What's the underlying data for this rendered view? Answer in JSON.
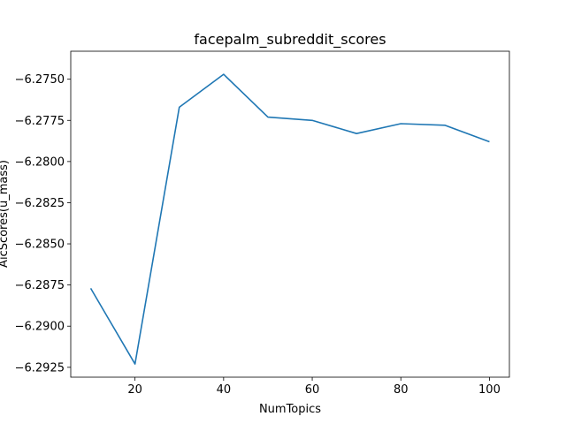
{
  "chart_data": {
    "type": "line",
    "title": "facepalm_subreddit_scores",
    "xlabel": "NumTopics",
    "ylabel": "AicScores(u_mass)",
    "x": [
      10,
      20,
      30,
      40,
      50,
      60,
      70,
      80,
      90,
      100
    ],
    "series": [
      {
        "values": [
          -6.2877,
          -6.2923,
          -6.2767,
          -6.2747,
          -6.2773,
          -6.2775,
          -6.2783,
          -6.2777,
          -6.2778,
          -6.2788
        ],
        "color": "#1f77b4"
      }
    ],
    "xlim": [
      5.5,
      104.5
    ],
    "ylim": [
      -6.2931,
      -6.2733
    ],
    "xticks": [
      20,
      40,
      60,
      80,
      100
    ],
    "xtick_labels": [
      "20",
      "40",
      "60",
      "80",
      "100"
    ],
    "yticks": [
      -6.2925,
      -6.29,
      -6.2875,
      -6.285,
      -6.2825,
      -6.28,
      -6.2775,
      -6.275
    ],
    "ytick_labels": [
      "−6.2925",
      "−6.2900",
      "−6.2875",
      "−6.2850",
      "−6.2825",
      "−6.2800",
      "−6.2775",
      "−6.2750"
    ],
    "grid": false,
    "legend": "none"
  }
}
